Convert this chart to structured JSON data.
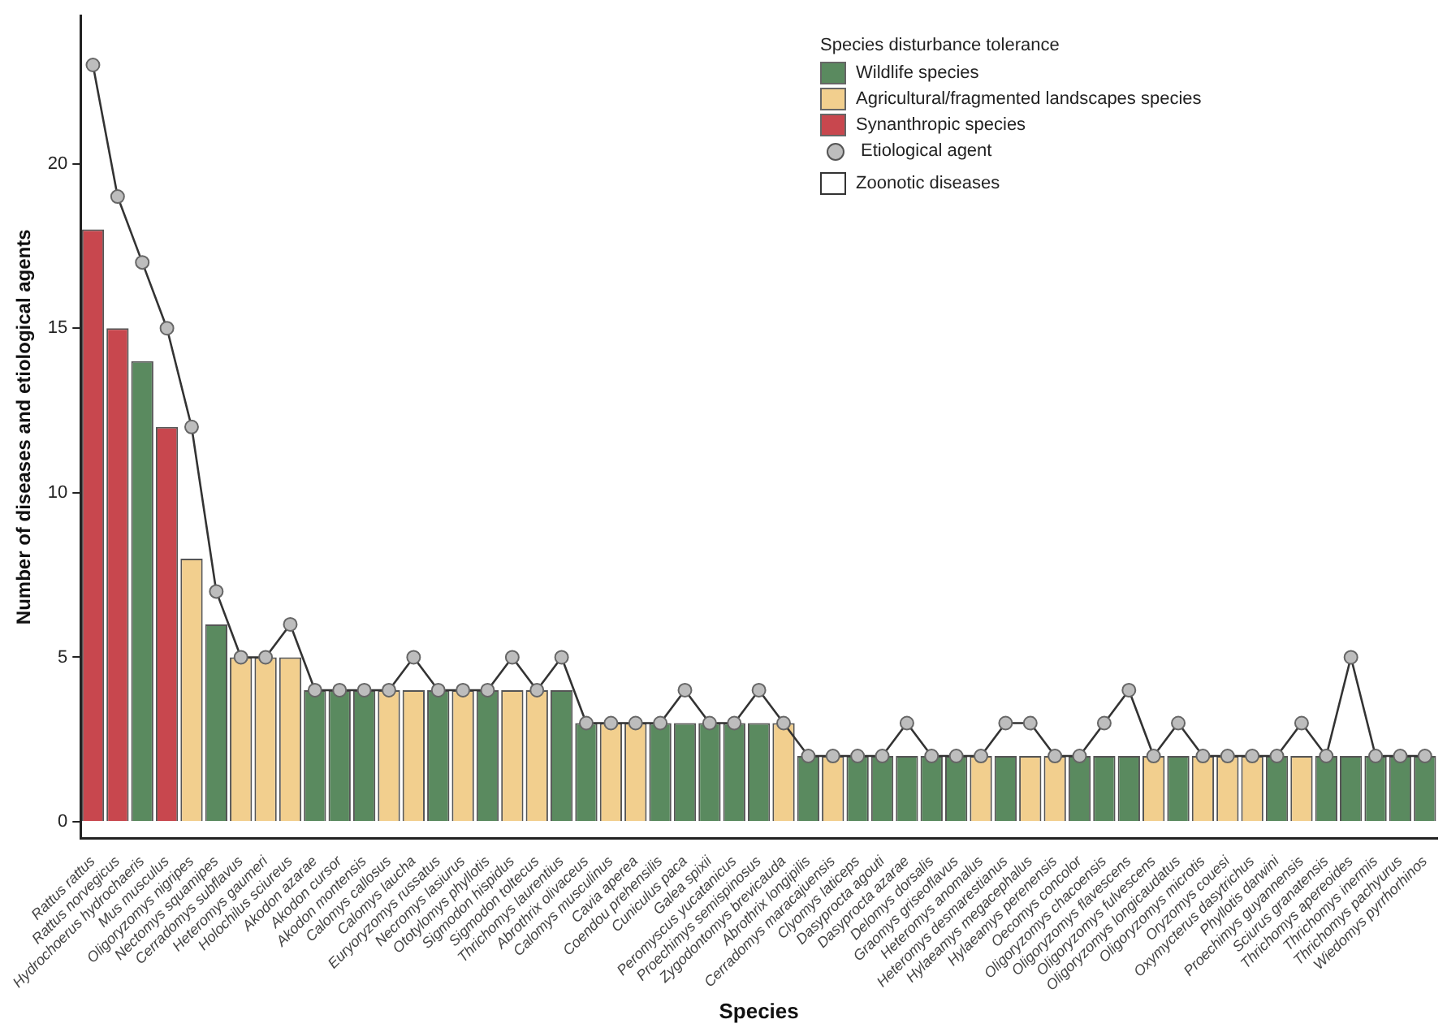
{
  "chart_data": {
    "type": "bar",
    "stacked": true,
    "xlabel": "Species",
    "ylabel": "Number of diseases and etiological agents",
    "legend_title": "Species disturbance tolerance",
    "legend": "top right",
    "grid": false,
    "categories": [
      "Rattus rattus",
      "Rattus norvegicus",
      "Hydrochoerus hydrochaeris",
      "Mus musculus",
      "Oligoryzomys nigripes",
      "Nectomys squamipes",
      "Cerradomys subflavus",
      "Heteromys gaumeri",
      "Holochilus sciureus",
      "Akodon azarae",
      "Akodon cursor",
      "Akodon montensis",
      "Calomys callosus",
      "Calomys laucha",
      "Euryoryzomys russatus",
      "Necromys lasiurus",
      "Ototylomys phyllotis",
      "Sigmodon hispidus",
      "Sigmodon toltecus",
      "Thrichomys laurentius",
      "Abrothrix olivaceus",
      "Calomys musculinus",
      "Cavia aperea",
      "Coendou prehensilis",
      "Cuniculus paca",
      "Galea spixii",
      "Peromyscus yucatanicus",
      "Proechimys semispinosus",
      "Zygodontomys brevicauda",
      "Abrothrix longipilis",
      "Cerradomys maracajuensis",
      "Clyomys laticeps",
      "Dasyprocta agouti",
      "Dasyprocta azarae",
      "Delomys dorsalis",
      "Graomys griseoflavus",
      "Heteromys anomalus",
      "Heteromys desmarestianus",
      "Hylaeamys megacephalus",
      "Hylaeamys perenensis",
      "Oecomys concolor",
      "Oligoryzomys chacoensis",
      "Oligoryzomys flavescens",
      "Oligoryzomys fulvescens",
      "Oligoryzomys longicaudatus",
      "Oligoryzomys microtis",
      "Oryzomys couesi",
      "Oxymycterus dasytrichus",
      "Phyllotis darwini",
      "Proechimys guyannensis",
      "Sciurus granatensis",
      "Thrichomys apereoides",
      "Thrichomys inermis",
      "Thrichomys pachyurus",
      "Wiedomys pyrrhorhinos"
    ],
    "series": [
      {
        "name": "Wildlife species",
        "color": "#5a8a5f",
        "values": [
          null,
          null,
          14,
          null,
          null,
          6,
          null,
          null,
          null,
          4,
          4,
          4,
          null,
          null,
          4,
          null,
          4,
          null,
          null,
          4,
          3,
          null,
          null,
          3,
          3,
          3,
          3,
          3,
          null,
          2,
          null,
          2,
          2,
          2,
          2,
          2,
          null,
          2,
          null,
          null,
          2,
          2,
          2,
          null,
          2,
          null,
          null,
          null,
          2,
          null,
          2,
          2,
          2,
          2,
          2
        ]
      },
      {
        "name": "Agricultural/fragmented landscapes species",
        "color": "#f2cf8e",
        "values": [
          null,
          null,
          null,
          null,
          8,
          null,
          5,
          5,
          5,
          null,
          null,
          null,
          4,
          4,
          null,
          4,
          null,
          4,
          4,
          null,
          null,
          3,
          3,
          null,
          null,
          null,
          null,
          null,
          3,
          null,
          2,
          null,
          null,
          null,
          null,
          null,
          2,
          null,
          2,
          2,
          null,
          null,
          null,
          2,
          null,
          2,
          2,
          2,
          null,
          2,
          null,
          null,
          null,
          null,
          null
        ]
      },
      {
        "name": "Synanthropic species",
        "color": "#c8474e",
        "values": [
          18,
          15,
          null,
          12,
          null,
          null,
          null,
          null,
          null,
          null,
          null,
          null,
          null,
          null,
          null,
          null,
          null,
          null,
          null,
          null,
          null,
          null,
          null,
          null,
          null,
          null,
          null,
          null,
          null,
          null,
          null,
          null,
          null,
          null,
          null,
          null,
          null,
          null,
          null,
          null,
          null,
          null,
          null,
          null,
          null,
          null,
          null,
          null,
          null,
          null,
          null,
          null,
          null,
          null,
          null
        ]
      },
      {
        "name": "Etiological agent",
        "type": "line",
        "marker": "circle",
        "color": "#bdbdbd",
        "values": [
          23,
          19,
          17,
          15,
          12,
          7,
          5,
          5,
          6,
          4,
          4,
          4,
          4,
          5,
          4,
          4,
          4,
          5,
          4,
          5,
          3,
          3,
          3,
          3,
          4,
          3,
          3,
          4,
          3,
          2,
          2,
          2,
          2,
          3,
          2,
          2,
          2,
          3,
          3,
          2,
          2,
          3,
          4,
          2,
          3,
          2,
          2,
          2,
          2,
          3,
          2,
          5,
          2,
          2,
          2
        ]
      }
    ],
    "annotations": [
      "Zoonotic diseases"
    ],
    "ylim": [
      -0.5,
      24.5
    ],
    "yticks": [
      0,
      5,
      10,
      15,
      20
    ]
  }
}
